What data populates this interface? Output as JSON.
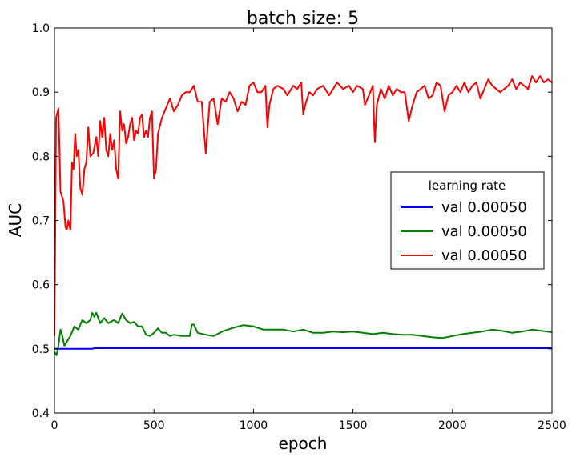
{
  "chart_data": {
    "type": "line",
    "title": "batch size: 5",
    "xlabel": "epoch",
    "ylabel": "AUC",
    "xlim": [
      0,
      2500
    ],
    "ylim": [
      0.4,
      1.0
    ],
    "xticks": [
      0,
      500,
      1000,
      1500,
      2000,
      2500
    ],
    "xtick_labels": [
      "0",
      "500",
      "1000",
      "1500",
      "2000",
      "2500"
    ],
    "yticks": [
      0.4,
      0.5,
      0.6,
      0.7,
      0.8,
      0.9,
      1.0
    ],
    "ytick_labels": [
      "0.4",
      "0.5",
      "0.6",
      "0.7",
      "0.8",
      "0.9",
      "1.0"
    ],
    "grid": false,
    "legend": {
      "title": "learning rate",
      "placement": "center-right"
    },
    "series": [
      {
        "name": "val 0.00050",
        "color": "#0000ff",
        "points": [
          [
            0,
            0.5
          ],
          [
            190,
            0.5
          ],
          [
            200,
            0.501
          ],
          [
            2500,
            0.501
          ]
        ]
      },
      {
        "name": "val 0.00050",
        "color": "#008000",
        "points": [
          [
            0,
            0.495
          ],
          [
            10,
            0.49
          ],
          [
            20,
            0.505
          ],
          [
            30,
            0.53
          ],
          [
            40,
            0.52
          ],
          [
            50,
            0.505
          ],
          [
            60,
            0.51
          ],
          [
            80,
            0.52
          ],
          [
            100,
            0.535
          ],
          [
            120,
            0.53
          ],
          [
            140,
            0.545
          ],
          [
            160,
            0.54
          ],
          [
            180,
            0.545
          ],
          [
            190,
            0.556
          ],
          [
            200,
            0.55
          ],
          [
            210,
            0.556
          ],
          [
            230,
            0.54
          ],
          [
            250,
            0.548
          ],
          [
            270,
            0.54
          ],
          [
            300,
            0.545
          ],
          [
            320,
            0.54
          ],
          [
            340,
            0.555
          ],
          [
            360,
            0.545
          ],
          [
            380,
            0.54
          ],
          [
            400,
            0.542
          ],
          [
            420,
            0.535
          ],
          [
            440,
            0.535
          ],
          [
            460,
            0.522
          ],
          [
            480,
            0.52
          ],
          [
            500,
            0.525
          ],
          [
            520,
            0.532
          ],
          [
            540,
            0.525
          ],
          [
            560,
            0.525
          ],
          [
            580,
            0.52
          ],
          [
            600,
            0.522
          ],
          [
            640,
            0.52
          ],
          [
            680,
            0.52
          ],
          [
            690,
            0.538
          ],
          [
            700,
            0.538
          ],
          [
            720,
            0.525
          ],
          [
            760,
            0.522
          ],
          [
            800,
            0.52
          ],
          [
            850,
            0.528
          ],
          [
            900,
            0.533
          ],
          [
            950,
            0.537
          ],
          [
            1000,
            0.535
          ],
          [
            1050,
            0.53
          ],
          [
            1100,
            0.53
          ],
          [
            1150,
            0.53
          ],
          [
            1200,
            0.527
          ],
          [
            1250,
            0.53
          ],
          [
            1300,
            0.525
          ],
          [
            1350,
            0.525
          ],
          [
            1400,
            0.527
          ],
          [
            1450,
            0.526
          ],
          [
            1500,
            0.527
          ],
          [
            1550,
            0.525
          ],
          [
            1600,
            0.523
          ],
          [
            1650,
            0.525
          ],
          [
            1700,
            0.523
          ],
          [
            1750,
            0.522
          ],
          [
            1800,
            0.522
          ],
          [
            1850,
            0.52
          ],
          [
            1900,
            0.518
          ],
          [
            1950,
            0.517
          ],
          [
            2000,
            0.52
          ],
          [
            2050,
            0.523
          ],
          [
            2100,
            0.525
          ],
          [
            2150,
            0.527
          ],
          [
            2200,
            0.53
          ],
          [
            2250,
            0.528
          ],
          [
            2300,
            0.525
          ],
          [
            2350,
            0.527
          ],
          [
            2400,
            0.53
          ],
          [
            2450,
            0.528
          ],
          [
            2500,
            0.526
          ]
        ]
      },
      {
        "name": "val 0.00050",
        "color": "#ff0000",
        "points": [
          [
            0,
            0.52
          ],
          [
            8,
            0.86
          ],
          [
            20,
            0.875
          ],
          [
            30,
            0.745
          ],
          [
            45,
            0.73
          ],
          [
            55,
            0.69
          ],
          [
            62,
            0.686
          ],
          [
            70,
            0.7
          ],
          [
            80,
            0.685
          ],
          [
            88,
            0.79
          ],
          [
            96,
            0.78
          ],
          [
            104,
            0.835
          ],
          [
            112,
            0.8
          ],
          [
            120,
            0.81
          ],
          [
            130,
            0.75
          ],
          [
            140,
            0.74
          ],
          [
            150,
            0.78
          ],
          [
            160,
            0.79
          ],
          [
            170,
            0.845
          ],
          [
            180,
            0.8
          ],
          [
            195,
            0.805
          ],
          [
            210,
            0.83
          ],
          [
            220,
            0.8
          ],
          [
            230,
            0.855
          ],
          [
            240,
            0.83
          ],
          [
            250,
            0.86
          ],
          [
            260,
            0.81
          ],
          [
            270,
            0.8
          ],
          [
            280,
            0.835
          ],
          [
            290,
            0.81
          ],
          [
            300,
            0.825
          ],
          [
            310,
            0.78
          ],
          [
            320,
            0.765
          ],
          [
            330,
            0.87
          ],
          [
            340,
            0.84
          ],
          [
            350,
            0.85
          ],
          [
            360,
            0.82
          ],
          [
            370,
            0.83
          ],
          [
            380,
            0.85
          ],
          [
            390,
            0.86
          ],
          [
            400,
            0.825
          ],
          [
            410,
            0.84
          ],
          [
            420,
            0.835
          ],
          [
            430,
            0.86
          ],
          [
            440,
            0.865
          ],
          [
            450,
            0.83
          ],
          [
            460,
            0.84
          ],
          [
            470,
            0.83
          ],
          [
            480,
            0.86
          ],
          [
            490,
            0.87
          ],
          [
            500,
            0.765
          ],
          [
            510,
            0.78
          ],
          [
            520,
            0.835
          ],
          [
            540,
            0.86
          ],
          [
            560,
            0.875
          ],
          [
            580,
            0.89
          ],
          [
            600,
            0.87
          ],
          [
            620,
            0.88
          ],
          [
            640,
            0.895
          ],
          [
            660,
            0.9
          ],
          [
            680,
            0.9
          ],
          [
            700,
            0.91
          ],
          [
            720,
            0.885
          ],
          [
            740,
            0.885
          ],
          [
            760,
            0.805
          ],
          [
            780,
            0.885
          ],
          [
            800,
            0.89
          ],
          [
            820,
            0.85
          ],
          [
            840,
            0.89
          ],
          [
            860,
            0.885
          ],
          [
            880,
            0.9
          ],
          [
            900,
            0.89
          ],
          [
            920,
            0.87
          ],
          [
            940,
            0.885
          ],
          [
            960,
            0.88
          ],
          [
            980,
            0.91
          ],
          [
            1000,
            0.915
          ],
          [
            1020,
            0.9
          ],
          [
            1040,
            0.9
          ],
          [
            1060,
            0.91
          ],
          [
            1070,
            0.845
          ],
          [
            1080,
            0.88
          ],
          [
            1100,
            0.905
          ],
          [
            1120,
            0.91
          ],
          [
            1150,
            0.905
          ],
          [
            1170,
            0.895
          ],
          [
            1200,
            0.91
          ],
          [
            1220,
            0.905
          ],
          [
            1240,
            0.915
          ],
          [
            1250,
            0.865
          ],
          [
            1260,
            0.88
          ],
          [
            1280,
            0.9
          ],
          [
            1300,
            0.895
          ],
          [
            1320,
            0.905
          ],
          [
            1350,
            0.91
          ],
          [
            1380,
            0.895
          ],
          [
            1400,
            0.905
          ],
          [
            1420,
            0.915
          ],
          [
            1450,
            0.905
          ],
          [
            1480,
            0.91
          ],
          [
            1500,
            0.9
          ],
          [
            1520,
            0.91
          ],
          [
            1550,
            0.905
          ],
          [
            1560,
            0.88
          ],
          [
            1580,
            0.895
          ],
          [
            1600,
            0.91
          ],
          [
            1610,
            0.822
          ],
          [
            1620,
            0.88
          ],
          [
            1640,
            0.905
          ],
          [
            1660,
            0.89
          ],
          [
            1680,
            0.91
          ],
          [
            1700,
            0.895
          ],
          [
            1720,
            0.905
          ],
          [
            1740,
            0.9
          ],
          [
            1760,
            0.9
          ],
          [
            1780,
            0.855
          ],
          [
            1800,
            0.88
          ],
          [
            1820,
            0.9
          ],
          [
            1840,
            0.905
          ],
          [
            1860,
            0.91
          ],
          [
            1880,
            0.89
          ],
          [
            1900,
            0.895
          ],
          [
            1920,
            0.915
          ],
          [
            1940,
            0.91
          ],
          [
            1960,
            0.87
          ],
          [
            1980,
            0.895
          ],
          [
            2000,
            0.9
          ],
          [
            2020,
            0.91
          ],
          [
            2040,
            0.9
          ],
          [
            2060,
            0.915
          ],
          [
            2080,
            0.9
          ],
          [
            2100,
            0.91
          ],
          [
            2120,
            0.915
          ],
          [
            2140,
            0.89
          ],
          [
            2160,
            0.905
          ],
          [
            2180,
            0.92
          ],
          [
            2200,
            0.91
          ],
          [
            2220,
            0.905
          ],
          [
            2240,
            0.9
          ],
          [
            2260,
            0.905
          ],
          [
            2280,
            0.91
          ],
          [
            2300,
            0.92
          ],
          [
            2320,
            0.905
          ],
          [
            2340,
            0.915
          ],
          [
            2360,
            0.91
          ],
          [
            2380,
            0.905
          ],
          [
            2400,
            0.925
          ],
          [
            2420,
            0.915
          ],
          [
            2440,
            0.925
          ],
          [
            2460,
            0.915
          ],
          [
            2480,
            0.92
          ],
          [
            2500,
            0.915
          ]
        ]
      }
    ]
  }
}
